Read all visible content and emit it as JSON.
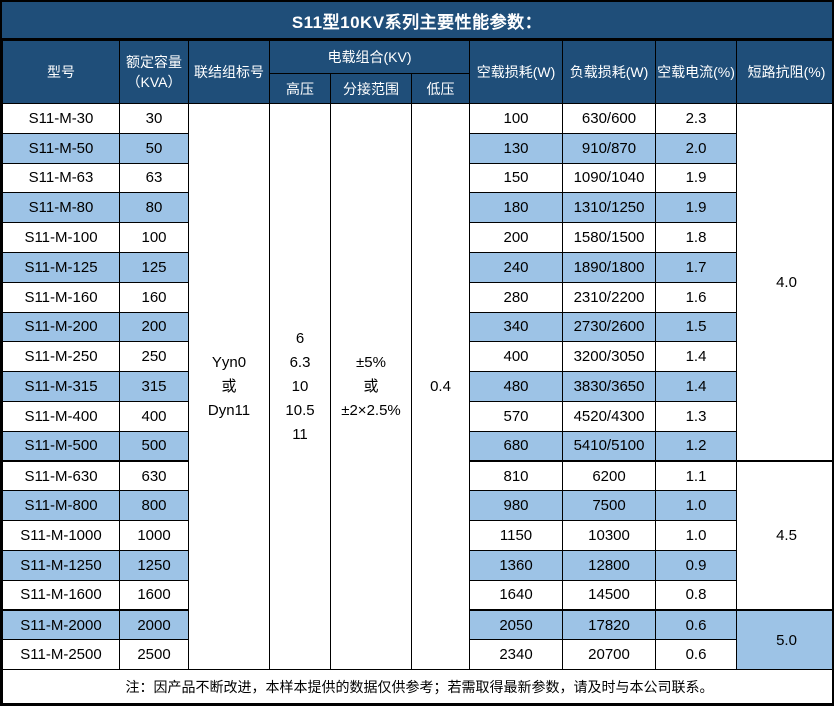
{
  "title": "S11型10KV系列主要性能参数：",
  "colors": {
    "header_bg": "#1F4E79",
    "stripe_bg": "#9DC3E6",
    "border": "#000000",
    "header_text": "#FFFFFF",
    "body_text": "#000000"
  },
  "header": {
    "model": "型号",
    "capacity_line1": "额定容量",
    "capacity_line2": "（KVA）",
    "connection": "联结组标号",
    "voltage_group": "电载组合(KV)",
    "hv": "高压",
    "tap_range": "分接范围",
    "lv": "低压",
    "no_load_loss": "空载损耗(W)",
    "load_loss": "负载损耗(W)",
    "no_load_current": "空载电流(%)",
    "impedance": "短路抗阻(%)"
  },
  "shared_cells": {
    "connection_lines": [
      "Yyn0",
      "或",
      "Dyn11"
    ],
    "hv_lines": [
      "6",
      "6.3",
      "10",
      "10.5",
      "11"
    ],
    "tap_range_lines": [
      "±5%",
      "或",
      "±2×2.5%"
    ],
    "lv": "0.4"
  },
  "rows": [
    {
      "model": "S11-M-30",
      "capacity": "30",
      "no_load_loss": "100",
      "load_loss": "630/600",
      "no_load_current": "2.3"
    },
    {
      "model": "S11-M-50",
      "capacity": "50",
      "no_load_loss": "130",
      "load_loss": "910/870",
      "no_load_current": "2.0"
    },
    {
      "model": "S11-M-63",
      "capacity": "63",
      "no_load_loss": "150",
      "load_loss": "1090/1040",
      "no_load_current": "1.9"
    },
    {
      "model": "S11-M-80",
      "capacity": "80",
      "no_load_loss": "180",
      "load_loss": "1310/1250",
      "no_load_current": "1.9"
    },
    {
      "model": "S11-M-100",
      "capacity": "100",
      "no_load_loss": "200",
      "load_loss": "1580/1500",
      "no_load_current": "1.8"
    },
    {
      "model": "S11-M-125",
      "capacity": "125",
      "no_load_loss": "240",
      "load_loss": "1890/1800",
      "no_load_current": "1.7"
    },
    {
      "model": "S11-M-160",
      "capacity": "160",
      "no_load_loss": "280",
      "load_loss": "2310/2200",
      "no_load_current": "1.6"
    },
    {
      "model": "S11-M-200",
      "capacity": "200",
      "no_load_loss": "340",
      "load_loss": "2730/2600",
      "no_load_current": "1.5"
    },
    {
      "model": "S11-M-250",
      "capacity": "250",
      "no_load_loss": "400",
      "load_loss": "3200/3050",
      "no_load_current": "1.4"
    },
    {
      "model": "S11-M-315",
      "capacity": "315",
      "no_load_loss": "480",
      "load_loss": "3830/3650",
      "no_load_current": "1.4"
    },
    {
      "model": "S11-M-400",
      "capacity": "400",
      "no_load_loss": "570",
      "load_loss": "4520/4300",
      "no_load_current": "1.3"
    },
    {
      "model": "S11-M-500",
      "capacity": "500",
      "no_load_loss": "680",
      "load_loss": "5410/5100",
      "no_load_current": "1.2"
    },
    {
      "model": "S11-M-630",
      "capacity": "630",
      "no_load_loss": "810",
      "load_loss": "6200",
      "no_load_current": "1.1"
    },
    {
      "model": "S11-M-800",
      "capacity": "800",
      "no_load_loss": "980",
      "load_loss": "7500",
      "no_load_current": "1.0"
    },
    {
      "model": "S11-M-1000",
      "capacity": "1000",
      "no_load_loss": "1150",
      "load_loss": "10300",
      "no_load_current": "1.0"
    },
    {
      "model": "S11-M-1250",
      "capacity": "1250",
      "no_load_loss": "1360",
      "load_loss": "12800",
      "no_load_current": "0.9"
    },
    {
      "model": "S11-M-1600",
      "capacity": "1600",
      "no_load_loss": "1640",
      "load_loss": "14500",
      "no_load_current": "0.8"
    },
    {
      "model": "S11-M-2000",
      "capacity": "2000",
      "no_load_loss": "2050",
      "load_loss": "17820",
      "no_load_current": "0.6"
    },
    {
      "model": "S11-M-2500",
      "capacity": "2500",
      "no_load_loss": "2340",
      "load_loss": "20700",
      "no_load_current": "0.6"
    }
  ],
  "impedance_groups": [
    {
      "value": "4.0",
      "span": 12
    },
    {
      "value": "4.5",
      "span": 5
    },
    {
      "value": "5.0",
      "span": 2
    }
  ],
  "footer_note": "注：因产品不断改进，本样本提供的数据仅供参考；若需取得最新参数，请及时与本公司联系。"
}
